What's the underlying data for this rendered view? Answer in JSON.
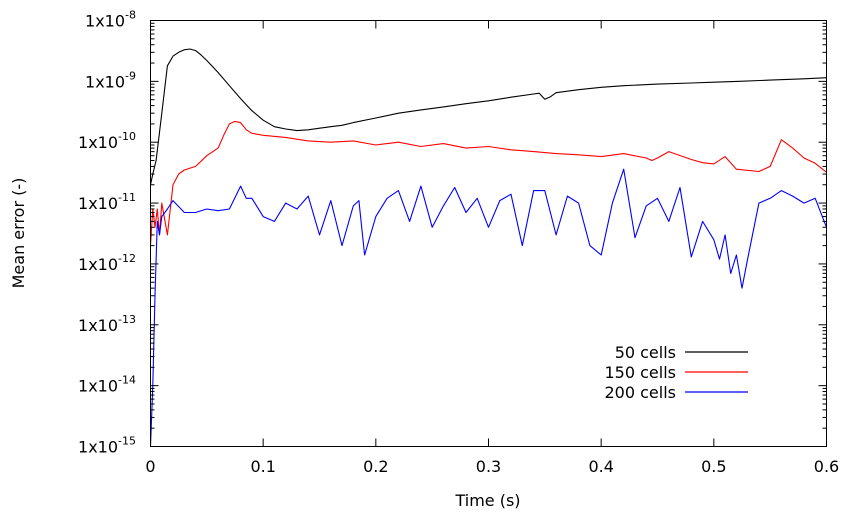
{
  "chart_data": {
    "type": "line",
    "title": "",
    "xlabel": "Time (s)",
    "ylabel": "Mean error (-)",
    "xlim": [
      0,
      0.6
    ],
    "ylim": [
      1e-15,
      1e-08
    ],
    "y_scale": "log",
    "x_ticks": [
      0,
      0.1,
      0.2,
      0.3,
      0.4,
      0.5,
      0.6
    ],
    "x_tick_labels": [
      "0",
      "0.1",
      "0.2",
      "0.3",
      "0.4",
      "0.5",
      "0.6"
    ],
    "y_ticks": [
      1e-15,
      1e-14,
      1e-13,
      1e-12,
      1e-11,
      1e-10,
      1e-09,
      1e-08
    ],
    "y_tick_labels": [
      {
        "base": "1x10",
        "exp": "-15"
      },
      {
        "base": "1x10",
        "exp": "-14"
      },
      {
        "base": "1x10",
        "exp": "-13"
      },
      {
        "base": "1x10",
        "exp": "-12"
      },
      {
        "base": "1x10",
        "exp": "-11"
      },
      {
        "base": "1x10",
        "exp": "-10"
      },
      {
        "base": "1x10",
        "exp": "-9"
      },
      {
        "base": "1x10",
        "exp": "-8"
      }
    ],
    "grid": false,
    "legend_position": "bottom-right",
    "series": [
      {
        "name": "50 cells",
        "color": "#000000",
        "x": [
          0.0,
          0.002,
          0.005,
          0.01,
          0.015,
          0.02,
          0.025,
          0.03,
          0.035,
          0.04,
          0.045,
          0.05,
          0.06,
          0.07,
          0.08,
          0.09,
          0.1,
          0.11,
          0.12,
          0.13,
          0.14,
          0.15,
          0.16,
          0.17,
          0.18,
          0.2,
          0.22,
          0.24,
          0.26,
          0.28,
          0.3,
          0.32,
          0.34,
          0.345,
          0.35,
          0.355,
          0.36,
          0.38,
          0.4,
          0.42,
          0.45,
          0.48,
          0.5,
          0.52,
          0.55,
          0.58,
          0.6
        ],
        "y": [
          2e-11,
          3e-11,
          5e-11,
          3e-10,
          1.8e-09,
          2.6e-09,
          3e-09,
          3.3e-09,
          3.4e-09,
          3.2e-09,
          2.7e-09,
          2.2e-09,
          1.4e-09,
          8.5e-10,
          5.2e-10,
          3.3e-10,
          2.3e-10,
          1.8e-10,
          1.65e-10,
          1.55e-10,
          1.6e-10,
          1.7e-10,
          1.8e-10,
          1.9e-10,
          2.1e-10,
          2.5e-10,
          3e-10,
          3.4e-10,
          3.8e-10,
          4.3e-10,
          4.8e-10,
          5.5e-10,
          6.2e-10,
          6.4e-10,
          5.1e-10,
          5.6e-10,
          6.5e-10,
          7.3e-10,
          8e-10,
          8.5e-10,
          9e-10,
          9.4e-10,
          9.7e-10,
          1e-09,
          1.05e-09,
          1.1e-09,
          1.15e-09
        ]
      },
      {
        "name": "150 cells",
        "color": "#ff0000",
        "x": [
          0.0,
          0.002,
          0.004,
          0.006,
          0.008,
          0.01,
          0.015,
          0.02,
          0.025,
          0.03,
          0.04,
          0.05,
          0.06,
          0.065,
          0.07,
          0.075,
          0.08,
          0.085,
          0.09,
          0.1,
          0.12,
          0.14,
          0.16,
          0.18,
          0.2,
          0.22,
          0.24,
          0.26,
          0.28,
          0.3,
          0.32,
          0.34,
          0.36,
          0.38,
          0.4,
          0.42,
          0.44,
          0.445,
          0.45,
          0.46,
          0.48,
          0.49,
          0.5,
          0.51,
          0.52,
          0.54,
          0.55,
          0.56,
          0.57,
          0.58,
          0.59,
          0.6
        ],
        "y": [
          2e-12,
          8e-12,
          4e-12,
          8e-12,
          3e-12,
          1e-11,
          3e-12,
          2e-11,
          3e-11,
          3.5e-11,
          4e-11,
          6e-11,
          8e-11,
          1.3e-10,
          2e-10,
          2.2e-10,
          2.1e-10,
          1.6e-10,
          1.4e-10,
          1.3e-10,
          1.2e-10,
          1.05e-10,
          1e-10,
          1.05e-10,
          9e-11,
          1e-10,
          8.5e-11,
          9.5e-11,
          8e-11,
          8.5e-11,
          7.5e-11,
          7e-11,
          6.5e-11,
          6.2e-11,
          5.8e-11,
          6.5e-11,
          5.5e-11,
          5e-11,
          5.5e-11,
          7e-11,
          5.2e-11,
          4.6e-11,
          4.4e-11,
          5.8e-11,
          3.6e-11,
          3.3e-11,
          4e-11,
          1.1e-10,
          8e-11,
          5.5e-11,
          4.5e-11,
          3.2e-11
        ]
      },
      {
        "name": "200 cells",
        "color": "#0000ff",
        "x": [
          0.0,
          0.002,
          0.004,
          0.006,
          0.008,
          0.01,
          0.015,
          0.02,
          0.03,
          0.04,
          0.05,
          0.06,
          0.07,
          0.08,
          0.085,
          0.09,
          0.1,
          0.11,
          0.12,
          0.13,
          0.14,
          0.15,
          0.16,
          0.17,
          0.18,
          0.185,
          0.19,
          0.2,
          0.21,
          0.22,
          0.23,
          0.24,
          0.25,
          0.26,
          0.27,
          0.28,
          0.29,
          0.3,
          0.31,
          0.32,
          0.33,
          0.34,
          0.35,
          0.36,
          0.37,
          0.38,
          0.39,
          0.4,
          0.41,
          0.42,
          0.43,
          0.44,
          0.45,
          0.46,
          0.47,
          0.48,
          0.49,
          0.5,
          0.505,
          0.51,
          0.515,
          0.52,
          0.525,
          0.53,
          0.54,
          0.55,
          0.56,
          0.57,
          0.58,
          0.59,
          0.6
        ],
        "y": [
          1e-15,
          1e-14,
          3e-13,
          5e-12,
          3e-12,
          6e-12,
          8e-12,
          1.1e-11,
          7e-12,
          7e-12,
          8e-12,
          7.5e-12,
          8e-12,
          1.9e-11,
          1.2e-11,
          1.2e-11,
          6e-12,
          5e-12,
          1e-11,
          8e-12,
          1.3e-11,
          3e-12,
          1.1e-11,
          2e-12,
          9e-12,
          1.1e-11,
          1.4e-12,
          6e-12,
          1.2e-11,
          1.6e-11,
          5e-12,
          1.9e-11,
          4e-12,
          9e-12,
          1.8e-11,
          7e-12,
          1.2e-11,
          4e-12,
          1.1e-11,
          1.4e-11,
          2e-12,
          1.6e-11,
          1.6e-11,
          3e-12,
          1.3e-11,
          1e-11,
          2e-12,
          1.4e-12,
          1e-11,
          3.6e-11,
          2.7e-12,
          9e-12,
          1.2e-11,
          5e-12,
          1.8e-11,
          1.3e-12,
          5e-12,
          2.5e-12,
          1.2e-12,
          3e-12,
          7e-13,
          1.4e-12,
          4e-13,
          1.2e-12,
          1e-11,
          1.2e-11,
          1.6e-11,
          1.3e-11,
          1e-11,
          1.2e-11,
          4e-12
        ]
      }
    ]
  }
}
